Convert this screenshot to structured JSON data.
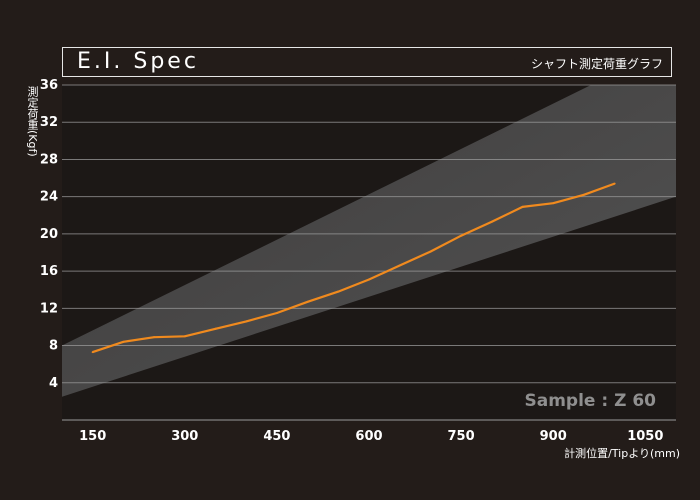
{
  "chart_data": {
    "type": "line",
    "title": "E.I. Spec",
    "subtitle": "シャフト測定荷重グラフ",
    "xlabel": "計測位置/Tipより(mm)",
    "ylabel": "測定荷重(Kgf)",
    "xlim": [
      100,
      1100
    ],
    "ylim": [
      0,
      36
    ],
    "xticks": [
      150,
      300,
      450,
      600,
      750,
      900,
      1050
    ],
    "yticks": [
      4,
      8,
      12,
      16,
      20,
      24,
      28,
      32,
      36
    ],
    "grid": true,
    "annotation": "Sample : Z 60",
    "band": {
      "upper": [
        [
          100,
          8.0
        ],
        [
          1100,
          40.5
        ]
      ],
      "lower": [
        [
          100,
          2.5
        ],
        [
          1100,
          24.0
        ]
      ]
    },
    "series": [
      {
        "color": "#f08a1e",
        "x": [
          150,
          200,
          250,
          300,
          350,
          400,
          450,
          500,
          550,
          600,
          650,
          700,
          750,
          800,
          850,
          900,
          950,
          1000
        ],
        "y": [
          7.3,
          8.4,
          8.9,
          9.0,
          9.8,
          10.6,
          11.5,
          12.7,
          13.8,
          15.1,
          16.6,
          18.1,
          19.8,
          21.3,
          22.9,
          23.3,
          24.2,
          25.4
        ]
      }
    ]
  },
  "colors": {
    "background": "#231c19",
    "plot_bg": "#1c1816",
    "band_light": "#535353",
    "band_dark": "#3d3b3b",
    "grid": "#9a9a9a",
    "line": "#f08a1e"
  }
}
